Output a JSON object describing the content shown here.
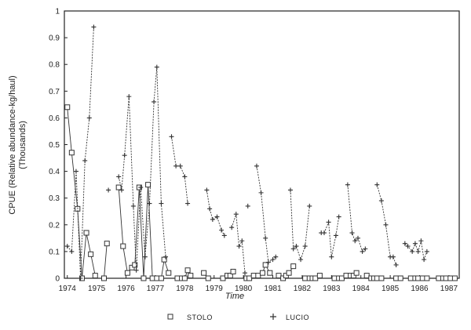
{
  "chart_data": {
    "type": "line",
    "title": "",
    "xlabel": "Time",
    "ylabel_line1": "CPUE (Relative abundance-kg/haul)",
    "ylabel_line2": "(Thousands)",
    "xlim": [
      1973.9,
      1987.35
    ],
    "ylim": [
      0,
      1
    ],
    "xticks": [
      1974,
      1975,
      1976,
      1977,
      1978,
      1979,
      1980,
      1981,
      1982,
      1983,
      1984,
      1985,
      1986,
      1987
    ],
    "xtick_labels": [
      "1974",
      "1975",
      "1976",
      "1977",
      "1978",
      "1979",
      "1980",
      "1981",
      "1982",
      "1983",
      "1984",
      "1985",
      "1986",
      "1987"
    ],
    "yticks": [
      0,
      0.1,
      0.2,
      0.3,
      0.4,
      0.5,
      0.6,
      0.7,
      0.8,
      0.9,
      1
    ],
    "ytick_labels": [
      "0",
      "0.1",
      "0.2",
      "0.3",
      "0.4",
      "0.5",
      "0.6",
      "0.7",
      "0.8",
      "0.9",
      "1"
    ],
    "grid": false,
    "legend_position": "bottom-center",
    "series": [
      {
        "name": "STOLO",
        "marker": "square",
        "color": "#333333",
        "segments": [
          [
            [
              1974.0,
              0.64
            ],
            [
              1974.15,
              0.47
            ],
            [
              1974.35,
              0.26
            ],
            [
              1974.5,
              0.0
            ],
            [
              1974.65,
              0.17
            ],
            [
              1974.8,
              0.09
            ],
            [
              1974.95,
              0.01
            ]
          ],
          [
            [
              1975.25,
              0.0
            ],
            [
              1975.35,
              0.13
            ]
          ],
          [
            [
              1975.75,
              0.34
            ],
            [
              1975.9,
              0.12
            ],
            [
              1976.05,
              0.02
            ],
            [
              1976.2,
              0.04
            ],
            [
              1976.3,
              0.05
            ],
            [
              1976.45,
              0.34
            ],
            [
              1976.6,
              0.0
            ],
            [
              1976.75,
              0.35
            ],
            [
              1976.9,
              0.0
            ],
            [
              1977.05,
              0.0
            ],
            [
              1977.2,
              0.0
            ],
            [
              1977.3,
              0.07
            ],
            [
              1977.45,
              0.02
            ]
          ],
          [
            [
              1977.75,
              0.0
            ],
            [
              1977.9,
              0.0
            ],
            [
              1978.0,
              0.0
            ],
            [
              1978.1,
              0.03
            ],
            [
              1978.2,
              0.01
            ]
          ],
          [
            [
              1978.65,
              0.02
            ],
            [
              1978.8,
              0.0
            ]
          ],
          [
            [
              1979.3,
              0.0
            ],
            [
              1979.45,
              0.01
            ],
            [
              1979.55,
              0.01
            ],
            [
              1979.65,
              0.025
            ]
          ],
          [
            [
              1980.1,
              0.0
            ],
            [
              1980.2,
              0.0
            ],
            [
              1980.35,
              0.01
            ],
            [
              1980.5,
              0.01
            ],
            [
              1980.65,
              0.02
            ],
            [
              1980.75,
              0.05
            ],
            [
              1980.9,
              0.02
            ]
          ],
          [
            [
              1981.2,
              0.01
            ],
            [
              1981.35,
              0.0
            ],
            [
              1981.45,
              0.01
            ],
            [
              1981.55,
              0.02
            ],
            [
              1981.7,
              0.045
            ]
          ],
          [
            [
              1982.1,
              0.0
            ],
            [
              1982.25,
              0.0
            ],
            [
              1982.35,
              0.0
            ],
            [
              1982.45,
              0.0
            ],
            [
              1982.6,
              0.01
            ]
          ],
          [
            [
              1983.1,
              0.0
            ],
            [
              1983.25,
              0.0
            ],
            [
              1983.35,
              0.0
            ],
            [
              1983.5,
              0.01
            ],
            [
              1983.65,
              0.01
            ],
            [
              1983.75,
              0.01
            ],
            [
              1983.85,
              0.02
            ]
          ],
          [
            [
              1984.2,
              0.01
            ],
            [
              1984.35,
              0.0
            ],
            [
              1984.45,
              0.0
            ],
            [
              1984.55,
              0.0
            ],
            [
              1984.7,
              0.0
            ]
          ],
          [
            [
              1985.2,
              0.0
            ],
            [
              1985.35,
              0.0
            ]
          ],
          [
            [
              1985.7,
              0.0
            ],
            [
              1985.85,
              0.0
            ],
            [
              1985.95,
              0.0
            ],
            [
              1986.1,
              0.0
            ],
            [
              1986.25,
              0.0
            ]
          ],
          [
            [
              1986.65,
              0.0
            ],
            [
              1986.8,
              0.0
            ],
            [
              1986.9,
              0.0
            ],
            [
              1987.05,
              0.0
            ],
            [
              1987.2,
              0.0
            ]
          ]
        ]
      },
      {
        "name": "LUCIO",
        "marker": "plus",
        "color": "#333333",
        "segments": [
          [
            [
              1974.0,
              0.12
            ],
            [
              1974.15,
              0.1
            ],
            [
              1974.3,
              0.4
            ],
            [
              1974.45,
              0.0
            ],
            [
              1974.6,
              0.44
            ],
            [
              1974.75,
              0.6
            ],
            [
              1974.9,
              0.94
            ]
          ],
          [
            [
              1975.4,
              0.33
            ]
          ],
          [
            [
              1975.75,
              0.38
            ],
            [
              1975.85,
              0.33
            ],
            [
              1975.95,
              0.46
            ],
            [
              1976.1,
              0.68
            ],
            [
              1976.25,
              0.27
            ],
            [
              1976.35,
              0.03
            ],
            [
              1976.5,
              0.34
            ],
            [
              1976.65,
              0.08
            ],
            [
              1976.8,
              0.28
            ],
            [
              1976.95,
              0.66
            ],
            [
              1977.05,
              0.79
            ],
            [
              1977.2,
              0.28
            ],
            [
              1977.35,
              0.08
            ]
          ],
          [
            [
              1977.55,
              0.53
            ],
            [
              1977.7,
              0.42
            ],
            [
              1977.85,
              0.42
            ],
            [
              1978.0,
              0.38
            ],
            [
              1978.1,
              0.28
            ]
          ],
          [
            [
              1978.75,
              0.33
            ],
            [
              1978.85,
              0.26
            ],
            [
              1978.95,
              0.22
            ],
            [
              1979.1,
              0.23
            ],
            [
              1979.25,
              0.18
            ],
            [
              1979.35,
              0.16
            ]
          ],
          [
            [
              1979.6,
              0.19
            ],
            [
              1979.75,
              0.24
            ],
            [
              1979.85,
              0.12
            ],
            [
              1979.95,
              0.14
            ],
            [
              1980.05,
              0.02
            ]
          ],
          [
            [
              1980.15,
              0.27
            ]
          ],
          [
            [
              1980.45,
              0.42
            ],
            [
              1980.6,
              0.32
            ],
            [
              1980.75,
              0.15
            ],
            [
              1980.85,
              0.06
            ],
            [
              1981.0,
              0.07
            ],
            [
              1981.1,
              0.08
            ]
          ],
          [
            [
              1981.6,
              0.33
            ],
            [
              1981.7,
              0.11
            ],
            [
              1981.8,
              0.12
            ],
            [
              1981.95,
              0.07
            ],
            [
              1982.1,
              0.12
            ],
            [
              1982.25,
              0.27
            ]
          ],
          [
            [
              1982.65,
              0.17
            ],
            [
              1982.75,
              0.17
            ],
            [
              1982.9,
              0.21
            ],
            [
              1983.0,
              0.08
            ],
            [
              1983.15,
              0.16
            ],
            [
              1983.25,
              0.23
            ]
          ],
          [
            [
              1983.55,
              0.35
            ],
            [
              1983.7,
              0.17
            ],
            [
              1983.8,
              0.14
            ],
            [
              1983.9,
              0.15
            ],
            [
              1984.05,
              0.1
            ],
            [
              1984.15,
              0.11
            ]
          ],
          [
            [
              1984.55,
              0.35
            ],
            [
              1984.7,
              0.29
            ],
            [
              1984.85,
              0.2
            ],
            [
              1985.0,
              0.08
            ],
            [
              1985.1,
              0.08
            ],
            [
              1985.2,
              0.05
            ]
          ],
          [
            [
              1985.5,
              0.13
            ],
            [
              1985.6,
              0.12
            ],
            [
              1985.75,
              0.1
            ],
            [
              1985.85,
              0.13
            ],
            [
              1985.95,
              0.1
            ],
            [
              1986.05,
              0.14
            ],
            [
              1986.15,
              0.07
            ],
            [
              1986.25,
              0.1
            ]
          ]
        ]
      }
    ]
  }
}
